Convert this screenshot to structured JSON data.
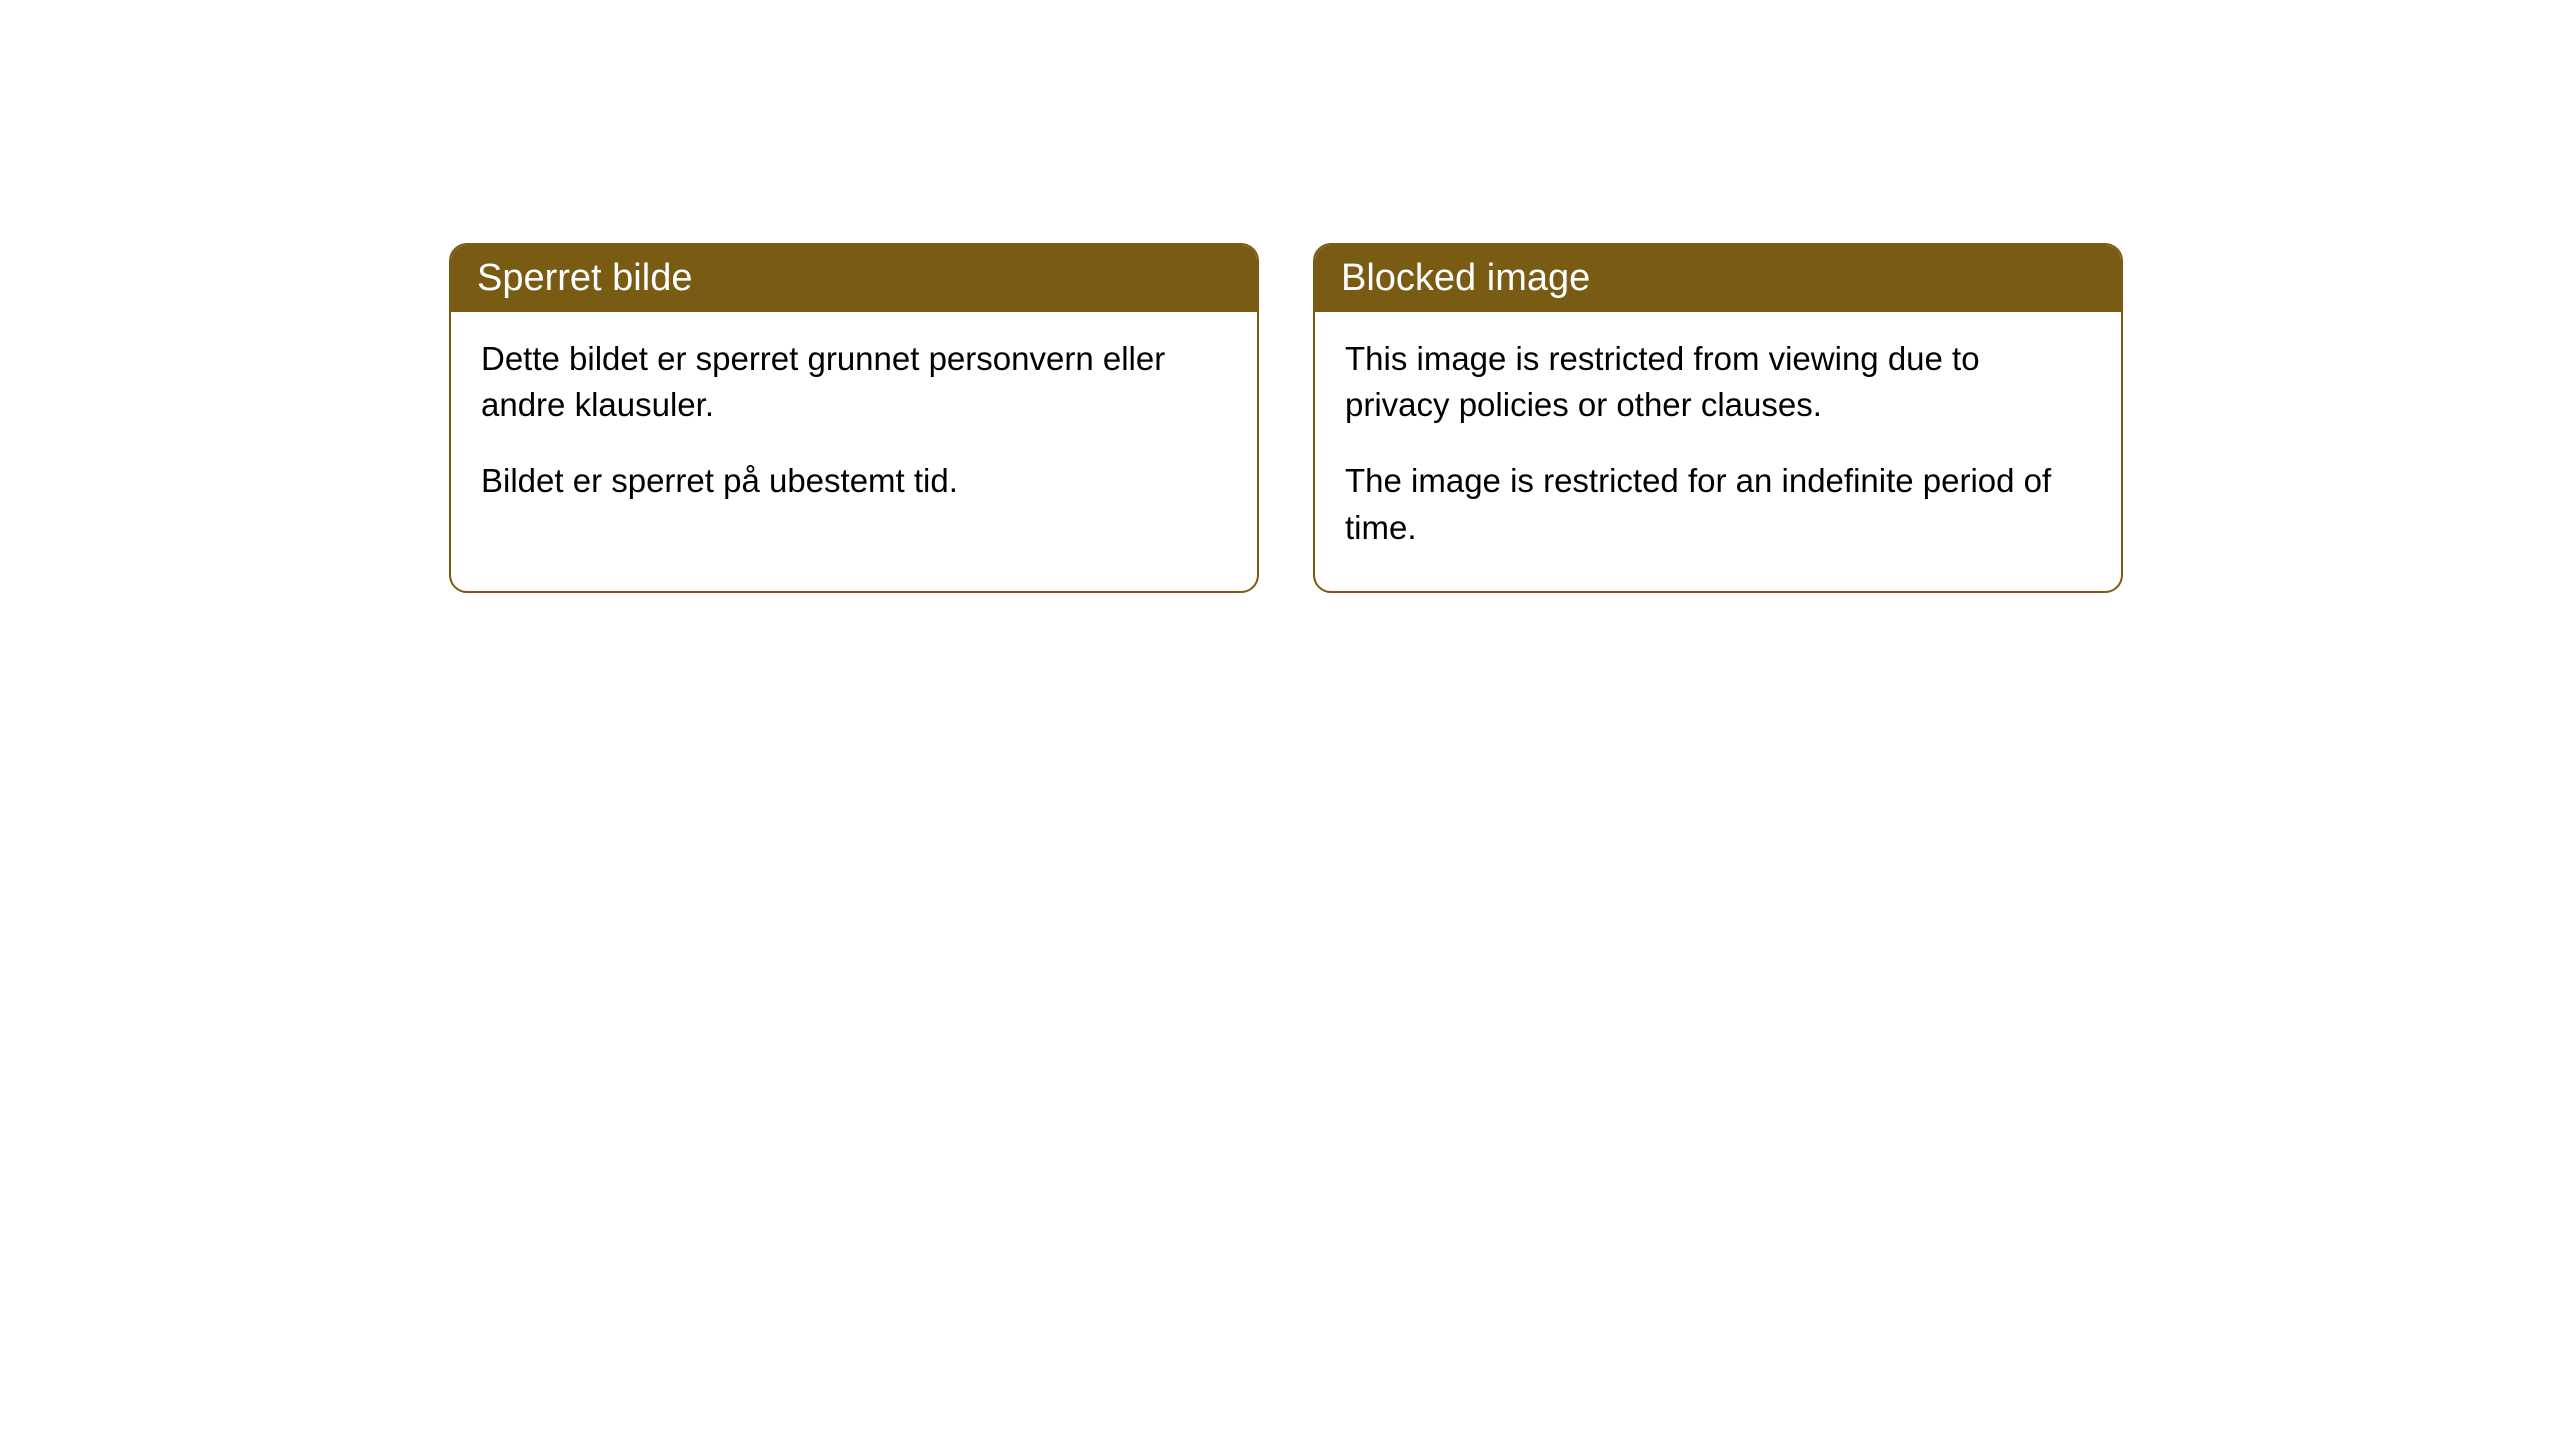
{
  "cards": [
    {
      "title": "Sperret bilde",
      "paragraph1": "Dette bildet er sperret grunnet personvern eller andre klausuler.",
      "paragraph2": "Bildet er sperret på ubestemt tid."
    },
    {
      "title": "Blocked image",
      "paragraph1": "This image is restricted from viewing due to privacy policies or other clauses.",
      "paragraph2": "The image is restricted for an indefinite period of time."
    }
  ],
  "styling": {
    "header_background": "#7a5b13",
    "header_text_color": "#ffffff",
    "border_color": "#7a5b13",
    "card_background": "#ffffff",
    "body_text_color": "#000000",
    "border_radius": 18,
    "title_fontsize": 38,
    "body_fontsize": 33
  }
}
